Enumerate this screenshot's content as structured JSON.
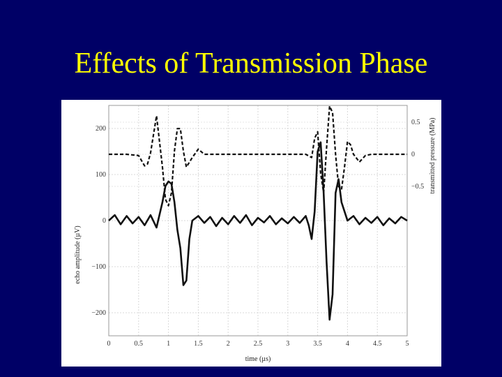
{
  "slide": {
    "title": "Effects of Transmission Phase",
    "background": "#000066",
    "title_color": "#ffff00"
  },
  "chart_data": {
    "type": "line",
    "title": "",
    "xlabel": "time (µs)",
    "ylabel_left": "echo amplitude (µV)",
    "ylabel_right": "transmitted pressure (MPa)",
    "xlim": [
      0,
      5
    ],
    "ylim_left": [
      -250,
      250
    ],
    "x_ticks": [
      "0",
      "0.5",
      "1",
      "1.5",
      "2",
      "2.5",
      "3",
      "3.5",
      "4",
      "4.5",
      "5"
    ],
    "y_ticks_left": [
      "200",
      "100",
      "0",
      "−100",
      "−200"
    ],
    "y_ticks_right": [
      "0.5",
      "0",
      "−0.5"
    ],
    "grid": true,
    "series": [
      {
        "style": "dashed",
        "axis": "right",
        "x": [
          0.0,
          0.3,
          0.5,
          0.6,
          0.65,
          0.7,
          0.8,
          0.9,
          0.95,
          1.0,
          1.05,
          1.1,
          1.15,
          1.2,
          1.25,
          1.3,
          1.4,
          1.5,
          1.6,
          3.3,
          3.4,
          3.45,
          3.5,
          3.55,
          3.6,
          3.65,
          3.7,
          3.75,
          3.8,
          3.85,
          3.9,
          3.95,
          4.0,
          4.05,
          4.1,
          4.2,
          4.3,
          4.4,
          5.0
        ],
        "y": [
          0.0,
          0.0,
          -0.02,
          -0.18,
          -0.15,
          0.02,
          0.6,
          -0.2,
          -0.7,
          -0.8,
          -0.6,
          0.05,
          0.4,
          0.4,
          0.05,
          -0.2,
          -0.05,
          0.08,
          0.0,
          0.0,
          -0.05,
          0.25,
          0.35,
          -0.3,
          -0.6,
          0.1,
          0.75,
          0.65,
          0.0,
          -0.5,
          -0.55,
          -0.2,
          0.2,
          0.15,
          0.0,
          -0.12,
          -0.02,
          0.0,
          0.0
        ]
      },
      {
        "style": "solid",
        "axis": "left",
        "x": [
          0.0,
          0.1,
          0.2,
          0.3,
          0.4,
          0.5,
          0.6,
          0.7,
          0.8,
          0.9,
          0.95,
          1.0,
          1.05,
          1.1,
          1.15,
          1.2,
          1.25,
          1.3,
          1.35,
          1.4,
          1.5,
          1.6,
          1.7,
          1.8,
          1.9,
          2.0,
          2.1,
          2.2,
          2.3,
          2.4,
          2.5,
          2.6,
          2.7,
          2.8,
          2.9,
          3.0,
          3.1,
          3.2,
          3.3,
          3.35,
          3.4,
          3.45,
          3.5,
          3.55,
          3.6,
          3.65,
          3.7,
          3.75,
          3.8,
          3.85,
          3.9,
          3.95,
          4.0,
          4.1,
          4.2,
          4.3,
          4.4,
          4.5,
          4.6,
          4.7,
          4.8,
          4.9,
          5.0
        ],
        "y": [
          0,
          12,
          -8,
          10,
          -6,
          8,
          -10,
          12,
          -15,
          40,
          75,
          85,
          80,
          40,
          -20,
          -60,
          -140,
          -130,
          -40,
          0,
          10,
          -5,
          8,
          -12,
          6,
          -8,
          10,
          -5,
          12,
          -10,
          6,
          -4,
          10,
          -8,
          5,
          -6,
          8,
          -5,
          10,
          -10,
          -40,
          20,
          150,
          170,
          60,
          -90,
          -215,
          -160,
          60,
          90,
          40,
          20,
          0,
          10,
          -8,
          6,
          -5,
          8,
          -10,
          5,
          -6,
          8,
          0
        ]
      }
    ]
  }
}
